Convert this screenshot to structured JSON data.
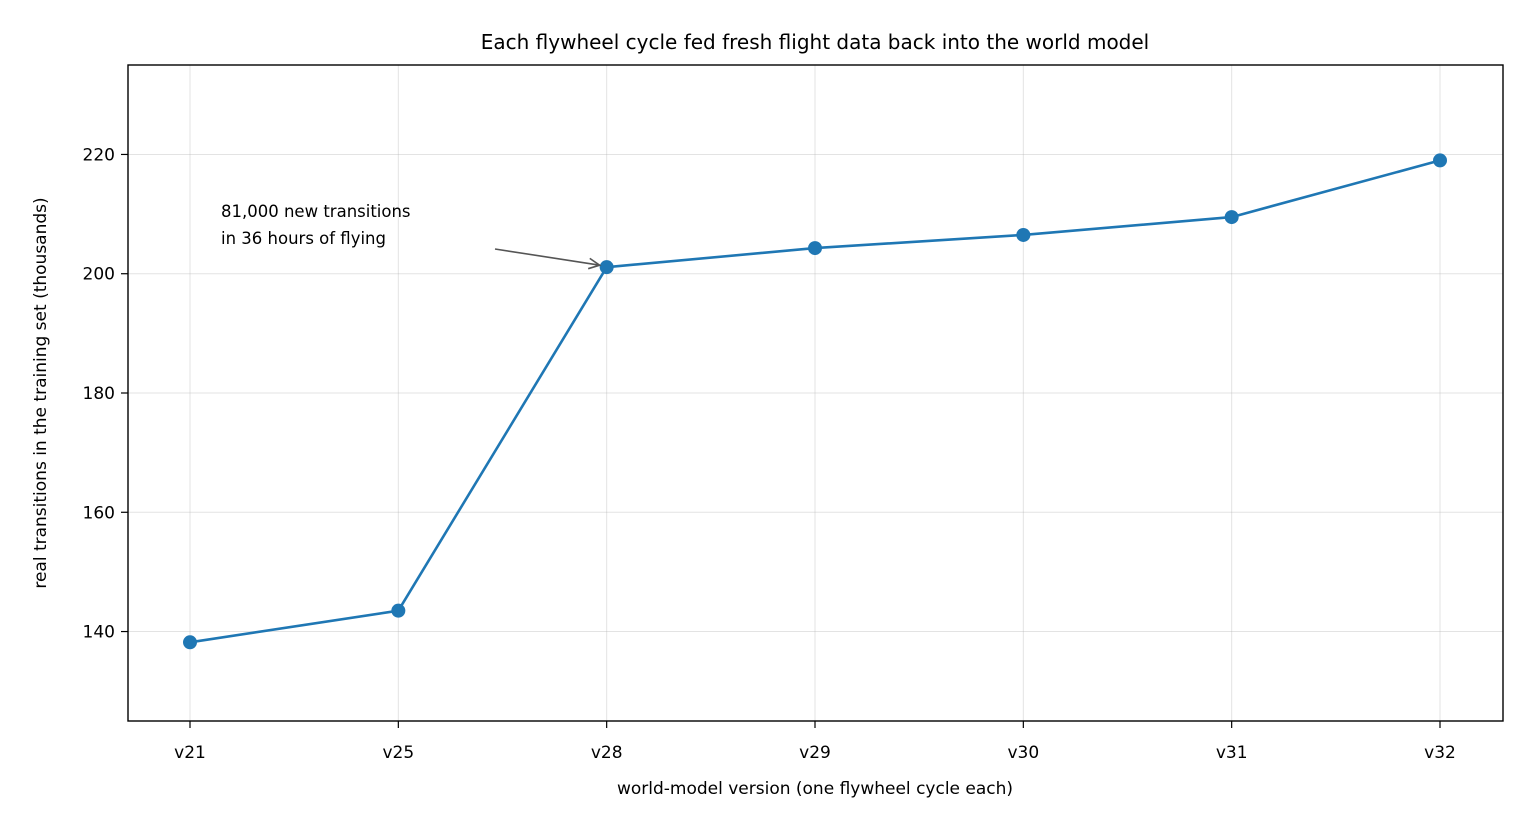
{
  "chart_data": {
    "type": "line",
    "title": "Each flywheel cycle fed fresh flight data back into the world model",
    "xlabel": "world-model version (one flywheel cycle each)",
    "ylabel": "real transitions in the training set (thousands)",
    "categories": [
      "v21",
      "v25",
      "v28",
      "v29",
      "v30",
      "v31",
      "v32"
    ],
    "series": [
      {
        "values": [
          138.2,
          143.5,
          201.1,
          204.3,
          206.5,
          209.5,
          219.0
        ]
      }
    ],
    "ylim": [
      125,
      235
    ],
    "yticks": [
      140,
      160,
      180,
      200,
      220
    ],
    "grid": true,
    "colors": {
      "line": "#1f77b4",
      "annotation_arrow": "#555555"
    },
    "annotation": {
      "lines": [
        "81,000 new transitions",
        "in 36 hours of flying"
      ],
      "target_category": "v28"
    }
  }
}
